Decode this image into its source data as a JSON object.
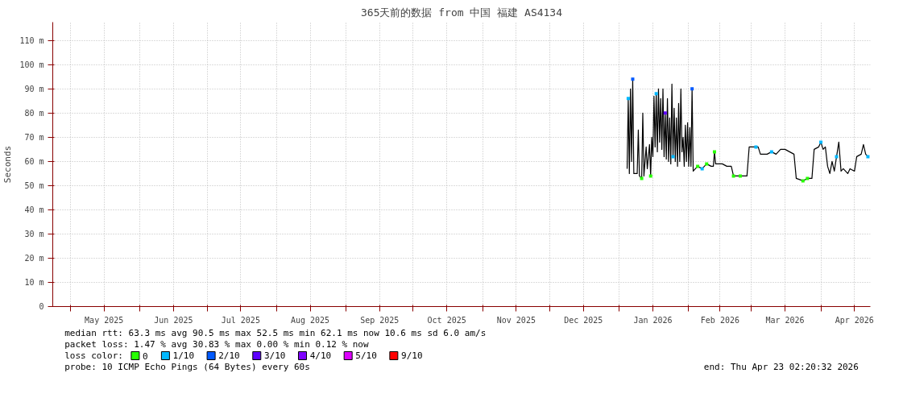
{
  "chart_data": {
    "type": "line",
    "title": "365天前的数据 from 中国 福建 AS4134",
    "ylabel": "Seconds",
    "xlim": [
      "2025-04-23T02:20",
      "2026-04-23T02:20"
    ],
    "xticks": [
      {
        "value": "2025-05-01",
        "label": null
      },
      {
        "value": "2025-05-16",
        "label": "May 2025"
      },
      {
        "value": "2025-06-01",
        "label": null
      },
      {
        "value": "2025-06-16",
        "label": "Jun 2025"
      },
      {
        "value": "2025-07-01",
        "label": null
      },
      {
        "value": "2025-07-16",
        "label": "Jul 2025"
      },
      {
        "value": "2025-08-01",
        "label": null
      },
      {
        "value": "2025-08-16",
        "label": "Aug 2025"
      },
      {
        "value": "2025-09-01",
        "label": null
      },
      {
        "value": "2025-09-16",
        "label": "Sep 2025"
      },
      {
        "value": "2025-10-01",
        "label": null
      },
      {
        "value": "2025-10-16",
        "label": "Oct 2025"
      },
      {
        "value": "2025-11-01",
        "label": null
      },
      {
        "value": "2025-11-16",
        "label": "Nov 2025"
      },
      {
        "value": "2025-12-01",
        "label": null
      },
      {
        "value": "2025-12-16",
        "label": "Dec 2025"
      },
      {
        "value": "2026-01-01",
        "label": null
      },
      {
        "value": "2026-01-16",
        "label": "Jan 2026"
      },
      {
        "value": "2026-02-01",
        "label": null
      },
      {
        "value": "2026-02-15",
        "label": "Feb 2026"
      },
      {
        "value": "2026-03-01",
        "label": null
      },
      {
        "value": "2026-03-16",
        "label": "Mar 2026"
      },
      {
        "value": "2026-04-01",
        "label": null
      },
      {
        "value": "2026-04-16",
        "label": "Apr 2026"
      }
    ],
    "ylim": [
      0,
      117.6
    ],
    "yticks": [
      0,
      {
        "value": 10,
        "label": "10 m"
      },
      {
        "value": 20,
        "label": "20 m"
      },
      {
        "value": 30,
        "label": "30 m"
      },
      {
        "value": 40,
        "label": "40 m"
      },
      {
        "value": 50,
        "label": "50 m"
      },
      {
        "value": 60,
        "label": "60 m"
      },
      {
        "value": 70,
        "label": "70 m"
      },
      {
        "value": 80,
        "label": "80 m"
      },
      {
        "value": 90,
        "label": "90 m"
      },
      {
        "value": 100,
        "label": "100 m"
      },
      {
        "value": 110,
        "label": "110 m"
      }
    ],
    "grid": true,
    "legend": "bottom",
    "legend_title": "loss color:",
    "series": [
      {
        "color": "#000000",
        "x": [
          "2026-01-04T12:00",
          "2026-01-05T00:00",
          "2026-01-05T12:00",
          "2026-01-06T00:00",
          "2026-01-06T12:00",
          "2026-01-07T00:00",
          "2026-01-07T12:00",
          "2026-01-09T00:00",
          "2026-01-09T12:00",
          "2026-01-10T00:00",
          "2026-01-11T00:00",
          "2026-01-11T12:00",
          "2026-01-12T00:00",
          "2026-01-13T00:00",
          "2026-01-13T12:00",
          "2026-01-14T12:00",
          "2026-01-15T00:00",
          "2026-01-15T12:00",
          "2026-01-16T00:00",
          "2026-01-16T12:00",
          "2026-01-17T00:00",
          "2026-01-17T12:00",
          "2026-01-18T00:00",
          "2026-01-18T12:00",
          "2026-01-19T00:00",
          "2026-01-19T12:00",
          "2026-01-20T00:00",
          "2026-01-20T12:00",
          "2026-01-21T00:00",
          "2026-01-21T12:00",
          "2026-01-22T00:00",
          "2026-01-22T12:00",
          "2026-01-23T00:00",
          "2026-01-23T12:00",
          "2026-01-24T00:00",
          "2026-01-24T12:00",
          "2026-01-25T00:00",
          "2026-01-25T12:00",
          "2026-01-26T00:00",
          "2026-01-26T12:00",
          "2026-01-27T00:00",
          "2026-01-27T12:00",
          "2026-01-28T00:00",
          "2026-01-28T12:00",
          "2026-01-29T00:00",
          "2026-01-29T12:00",
          "2026-01-30T00:00",
          "2026-01-30T12:00",
          "2026-01-31T00:00",
          "2026-01-31T12:00",
          "2026-02-01T00:00",
          "2026-02-01T12:00",
          "2026-02-02T00:00",
          "2026-02-02T12:00",
          "2026-02-03T00:00",
          "2026-02-05",
          "2026-02-07",
          "2026-02-09",
          "2026-02-11",
          "2026-02-12",
          "2026-02-12T12:00",
          "2026-02-13",
          "2026-02-16",
          "2026-02-18",
          "2026-02-20",
          "2026-02-21",
          "2026-02-24",
          "2026-02-27",
          "2026-02-28",
          "2026-03-03",
          "2026-03-04",
          "2026-03-05",
          "2026-03-08",
          "2026-03-10",
          "2026-03-12",
          "2026-03-14",
          "2026-03-16",
          "2026-03-18",
          "2026-03-20",
          "2026-03-21",
          "2026-03-24",
          "2026-03-26",
          "2026-03-28",
          "2026-03-29",
          "2026-03-31",
          "2026-04-01",
          "2026-04-02",
          "2026-04-03",
          "2026-04-04",
          "2026-04-05",
          "2026-04-06",
          "2026-04-07",
          "2026-04-08",
          "2026-04-09",
          "2026-04-10",
          "2026-04-11",
          "2026-04-13",
          "2026-04-14",
          "2026-04-16",
          "2026-04-17",
          "2026-04-19",
          "2026-04-20",
          "2026-04-21",
          "2026-04-22"
        ],
        "values": [
          57,
          86,
          55,
          90,
          60,
          94,
          55,
          55,
          73,
          54,
          53,
          80,
          54,
          66,
          57,
          67,
          54,
          70,
          62,
          87,
          66,
          88,
          64,
          90,
          68,
          86,
          65,
          90,
          62,
          80,
          61,
          86,
          60,
          78,
          59,
          92,
          62,
          82,
          60,
          78,
          58,
          84,
          60,
          90,
          64,
          70,
          58,
          75,
          60,
          76,
          58,
          74,
          58,
          90,
          56,
          58,
          57,
          59,
          58,
          58,
          64,
          59,
          59,
          58,
          58,
          54,
          54,
          54,
          66,
          66,
          66,
          63,
          63,
          64,
          63,
          65,
          65,
          64,
          63,
          53,
          52,
          53,
          53,
          65,
          66,
          68,
          65,
          66,
          58,
          55,
          60,
          56,
          62,
          68,
          56,
          57,
          55,
          57,
          56,
          62,
          63,
          67,
          63,
          62
        ]
      },
      {
        "type": "scatter",
        "marker": "square",
        "name": "0",
        "color": "#26ff00",
        "x": [
          "2026-01-11T00:00",
          "2026-01-15T00:00",
          "2026-02-05",
          "2026-02-09",
          "2026-02-12T12:00",
          "2026-02-21",
          "2026-02-24",
          "2026-03-24",
          "2026-03-26"
        ],
        "values": [
          53,
          54,
          58,
          59,
          64,
          54,
          54,
          52,
          53
        ]
      },
      {
        "type": "scatter",
        "marker": "square",
        "name": "1/10",
        "color": "#00b8ff",
        "x": [
          "2026-01-05T00:00",
          "2026-01-17T12:00",
          "2026-01-25T00:00",
          "2026-02-07",
          "2026-03-03",
          "2026-03-10",
          "2026-04-01",
          "2026-04-08",
          "2026-04-22"
        ],
        "values": [
          86,
          88,
          62,
          57,
          66,
          64,
          68,
          62,
          62
        ]
      },
      {
        "type": "scatter",
        "marker": "square",
        "name": "2/10",
        "color": "#0059ff",
        "x": [
          "2026-01-07T00:00",
          "2026-02-02T12:00"
        ],
        "values": [
          94,
          90
        ]
      },
      {
        "type": "scatter",
        "marker": "square",
        "name": "3/10",
        "color": "#5e00ff",
        "x": [
          "2026-01-21T12:00"
        ],
        "values": [
          80
        ]
      },
      {
        "type": "scatter",
        "marker": "square",
        "name": "4/10",
        "color": "#7e00ff"
      },
      {
        "type": "scatter",
        "marker": "square",
        "name": "5/10",
        "color": "#dd00ff"
      },
      {
        "type": "scatter",
        "marker": "square",
        "name": "9/10",
        "color": "#ff0000"
      }
    ],
    "annotations": [
      "median rtt:  63.3 ms avg  90.5 ms max  52.5 ms min  62.1 ms now  10.6 ms sd  6.0   am/s",
      "packet loss: 1.47 % avg  30.83 % max  0.00 % min  0.12 % now",
      "probe:       10 ICMP Echo Pings (64 Bytes) every 60s",
      "end: Thu Apr 23 02:20:32 2026"
    ]
  }
}
